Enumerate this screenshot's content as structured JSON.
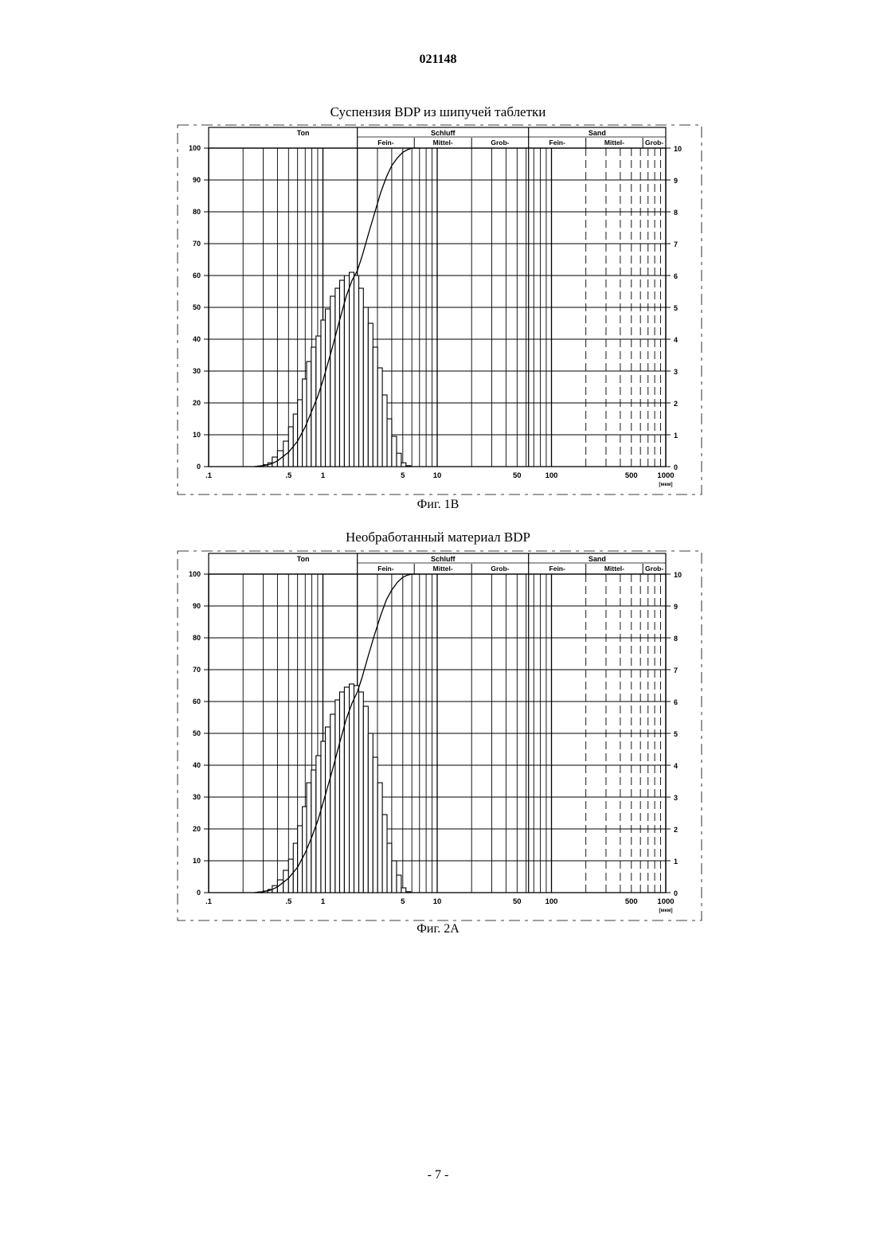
{
  "document": {
    "number": "021148",
    "page_number": "- 7 -"
  },
  "figures": [
    {
      "title": "Суспензия BDP из шипучей таблетки",
      "caption": "Фиг. 1B"
    },
    {
      "title": "Необработанный материал BDP",
      "caption": "Фиг. 2A"
    }
  ],
  "chart_data": [
    {
      "type": "bar",
      "title": "Суспензия BDP из шипучей таблетки",
      "x_scale": "log",
      "x_unit": "[мкм]",
      "x_ticks": [
        ".1",
        ".5",
        "1",
        "5",
        "10",
        "50",
        "100",
        "500",
        "1000"
      ],
      "xlim": [
        0.1,
        1000
      ],
      "ylim_left": [
        0,
        100
      ],
      "y_ticks_left": [
        "0",
        "10",
        "20",
        "30",
        "40",
        "50",
        "60",
        "70",
        "80",
        "90",
        "100"
      ],
      "ylim_right": [
        0,
        10
      ],
      "y_ticks_right": [
        "0",
        "1",
        "2",
        "3",
        "4",
        "5",
        "6",
        "7",
        "8",
        "9",
        "10"
      ],
      "grid": true,
      "band_header": {
        "groups": [
          "Ton",
          "Schluff",
          "Sand"
        ],
        "subgroups": [
          "Fein-",
          "Mittel-",
          "Grob-",
          "Fein-",
          "Mittel-",
          "Grob-"
        ]
      },
      "histogram": {
        "edges": [
          0.27,
          0.3,
          0.33,
          0.36,
          0.4,
          0.45,
          0.5,
          0.55,
          0.6,
          0.66,
          0.72,
          0.79,
          0.87,
          0.96,
          1.05,
          1.16,
          1.28,
          1.4,
          1.54,
          1.7,
          1.87,
          2.06,
          2.26,
          2.49,
          2.74,
          3.01,
          3.31,
          3.64,
          4.0,
          4.41,
          4.85,
          5.33,
          5.86,
          6.45
        ],
        "values": [
          0.02,
          0.06,
          0.12,
          0.3,
          0.5,
          0.8,
          1.25,
          1.65,
          2.1,
          2.75,
          3.3,
          3.75,
          4.1,
          4.6,
          4.95,
          5.35,
          5.6,
          5.85,
          6.0,
          6.1,
          6.0,
          5.6,
          5.0,
          4.5,
          3.75,
          3.1,
          2.25,
          1.5,
          0.95,
          0.42,
          0.12,
          0.03,
          0.0
        ]
      },
      "cumulative": {
        "x": [
          0.25,
          0.3,
          0.35,
          0.4,
          0.5,
          0.6,
          0.7,
          0.8,
          0.9,
          1.0,
          1.2,
          1.4,
          1.6,
          1.8,
          2.0,
          2.2,
          2.5,
          2.8,
          3.2,
          3.6,
          4.0,
          4.5,
          5.0,
          5.5,
          6.0,
          7.0
        ],
        "y": [
          0,
          0.3,
          0.8,
          1.8,
          4.5,
          8,
          12.5,
          17.5,
          22,
          27,
          37,
          46,
          53.5,
          58.5,
          61.5,
          66,
          73,
          79,
          86,
          91,
          94.5,
          97,
          98.7,
          99.5,
          100,
          100
        ]
      }
    },
    {
      "type": "bar",
      "title": "Необработанный материал BDP",
      "x_scale": "log",
      "x_unit": "[мкм]",
      "x_ticks": [
        ".1",
        ".5",
        "1",
        "5",
        "10",
        "50",
        "100",
        "500",
        "1000"
      ],
      "xlim": [
        0.1,
        1000
      ],
      "ylim_left": [
        0,
        100
      ],
      "y_ticks_left": [
        "0",
        "10",
        "20",
        "30",
        "40",
        "50",
        "60",
        "70",
        "80",
        "90",
        "100"
      ],
      "ylim_right": [
        0,
        10
      ],
      "y_ticks_right": [
        "0",
        "1",
        "2",
        "3",
        "4",
        "5",
        "6",
        "7",
        "8",
        "9",
        "10"
      ],
      "grid": true,
      "band_header": {
        "groups": [
          "Ton",
          "Schluff",
          "Sand"
        ],
        "subgroups": [
          "Fein-",
          "Mittel-",
          "Grob-",
          "Fein-",
          "Mittel-",
          "Grob-"
        ]
      },
      "histogram": {
        "edges": [
          0.27,
          0.3,
          0.33,
          0.36,
          0.4,
          0.45,
          0.5,
          0.55,
          0.6,
          0.66,
          0.72,
          0.79,
          0.87,
          0.96,
          1.05,
          1.16,
          1.28,
          1.4,
          1.54,
          1.7,
          1.87,
          2.06,
          2.26,
          2.49,
          2.74,
          3.01,
          3.31,
          3.64,
          4.0,
          4.41,
          4.85,
          5.33,
          5.86,
          6.45
        ],
        "values": [
          0.02,
          0.05,
          0.1,
          0.22,
          0.4,
          0.7,
          1.05,
          1.55,
          2.1,
          2.7,
          3.45,
          3.85,
          4.3,
          4.75,
          5.2,
          5.6,
          6.05,
          6.3,
          6.45,
          6.55,
          6.5,
          6.3,
          5.85,
          5.0,
          4.25,
          3.45,
          2.45,
          1.55,
          1.0,
          0.55,
          0.15,
          0.03,
          0.0
        ]
      },
      "cumulative": {
        "x": [
          0.25,
          0.3,
          0.35,
          0.4,
          0.5,
          0.6,
          0.7,
          0.8,
          0.9,
          1.0,
          1.2,
          1.4,
          1.6,
          1.8,
          2.0,
          2.2,
          2.5,
          2.8,
          3.2,
          3.6,
          4.0,
          4.5,
          5.0,
          5.5,
          6.0,
          7.0
        ],
        "y": [
          0,
          0.3,
          0.8,
          1.8,
          4.5,
          8,
          12.5,
          17.5,
          22.5,
          28,
          38,
          47,
          54.5,
          59.5,
          63,
          67.5,
          74.5,
          80.5,
          87,
          92,
          95,
          97.5,
          99,
          99.7,
          100,
          100
        ]
      }
    }
  ]
}
